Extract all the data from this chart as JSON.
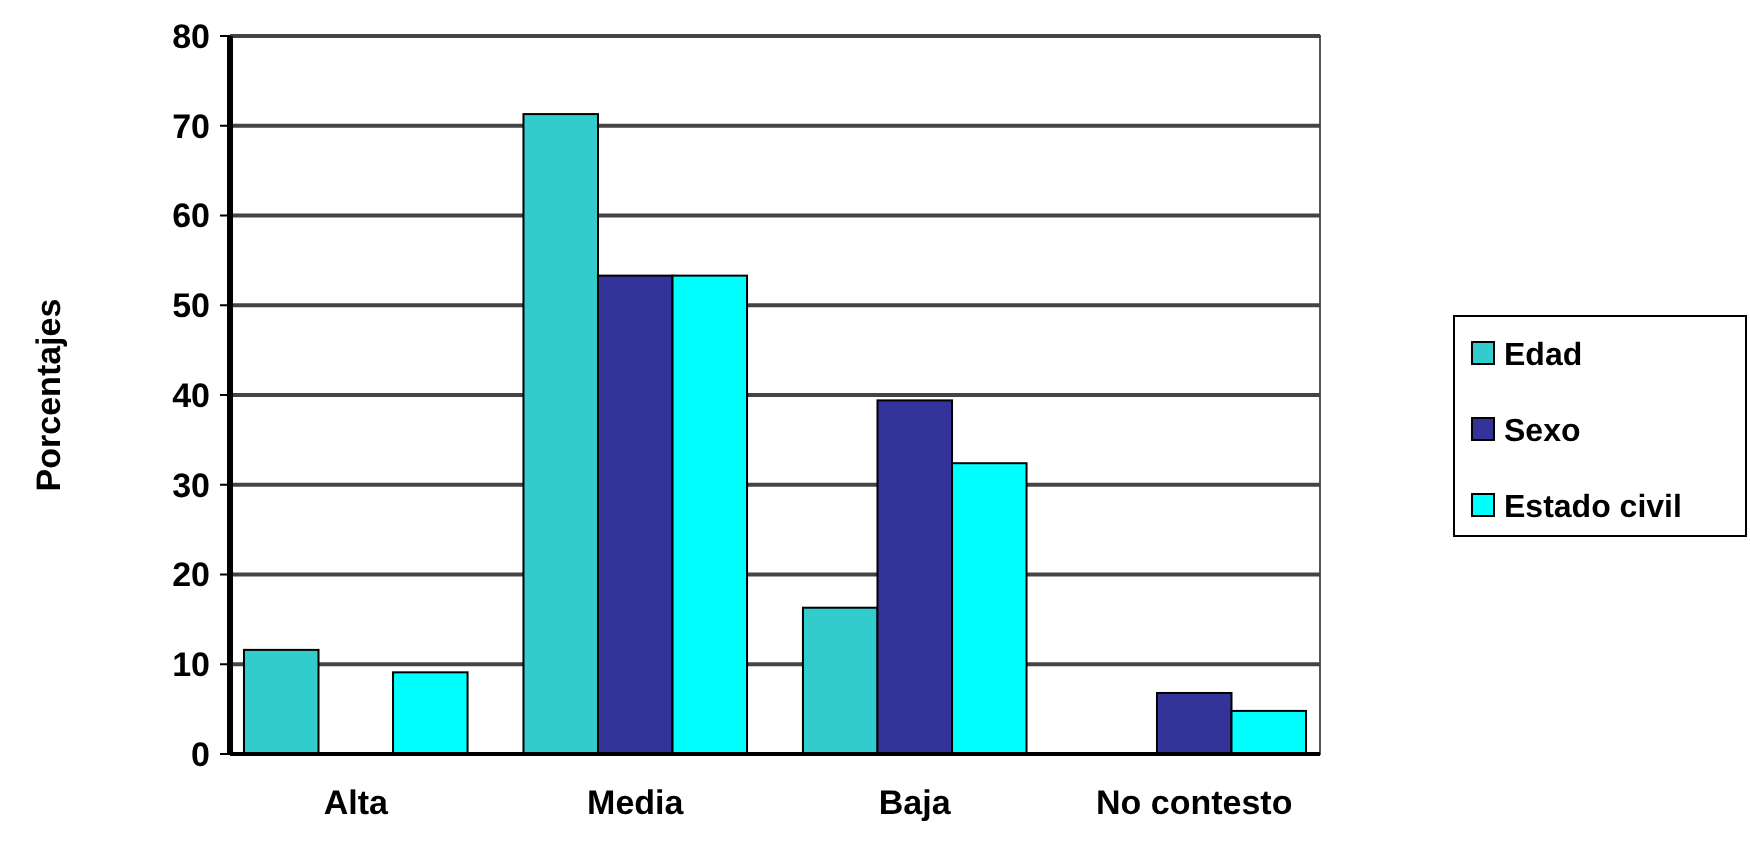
{
  "chart_data": {
    "type": "bar",
    "ylabel": "Porcentajes",
    "categories": [
      "Alta",
      "Media",
      "Baja",
      "No contesto"
    ],
    "series": [
      {
        "name": "Edad",
        "color": "#33cccc",
        "values": [
          11.6,
          71.3,
          16.3,
          0
        ]
      },
      {
        "name": "Sexo",
        "color": "#333399",
        "values": [
          0,
          53.3,
          39.4,
          6.8
        ]
      },
      {
        "name": "Estado civil",
        "color": "#00ffff",
        "values": [
          9.1,
          53.3,
          32.4,
          4.8
        ]
      }
    ],
    "ylim": [
      0,
      80
    ],
    "yticks": [
      0,
      10,
      20,
      30,
      40,
      50,
      60,
      70,
      80
    ],
    "grid": "y",
    "legend": "right"
  }
}
